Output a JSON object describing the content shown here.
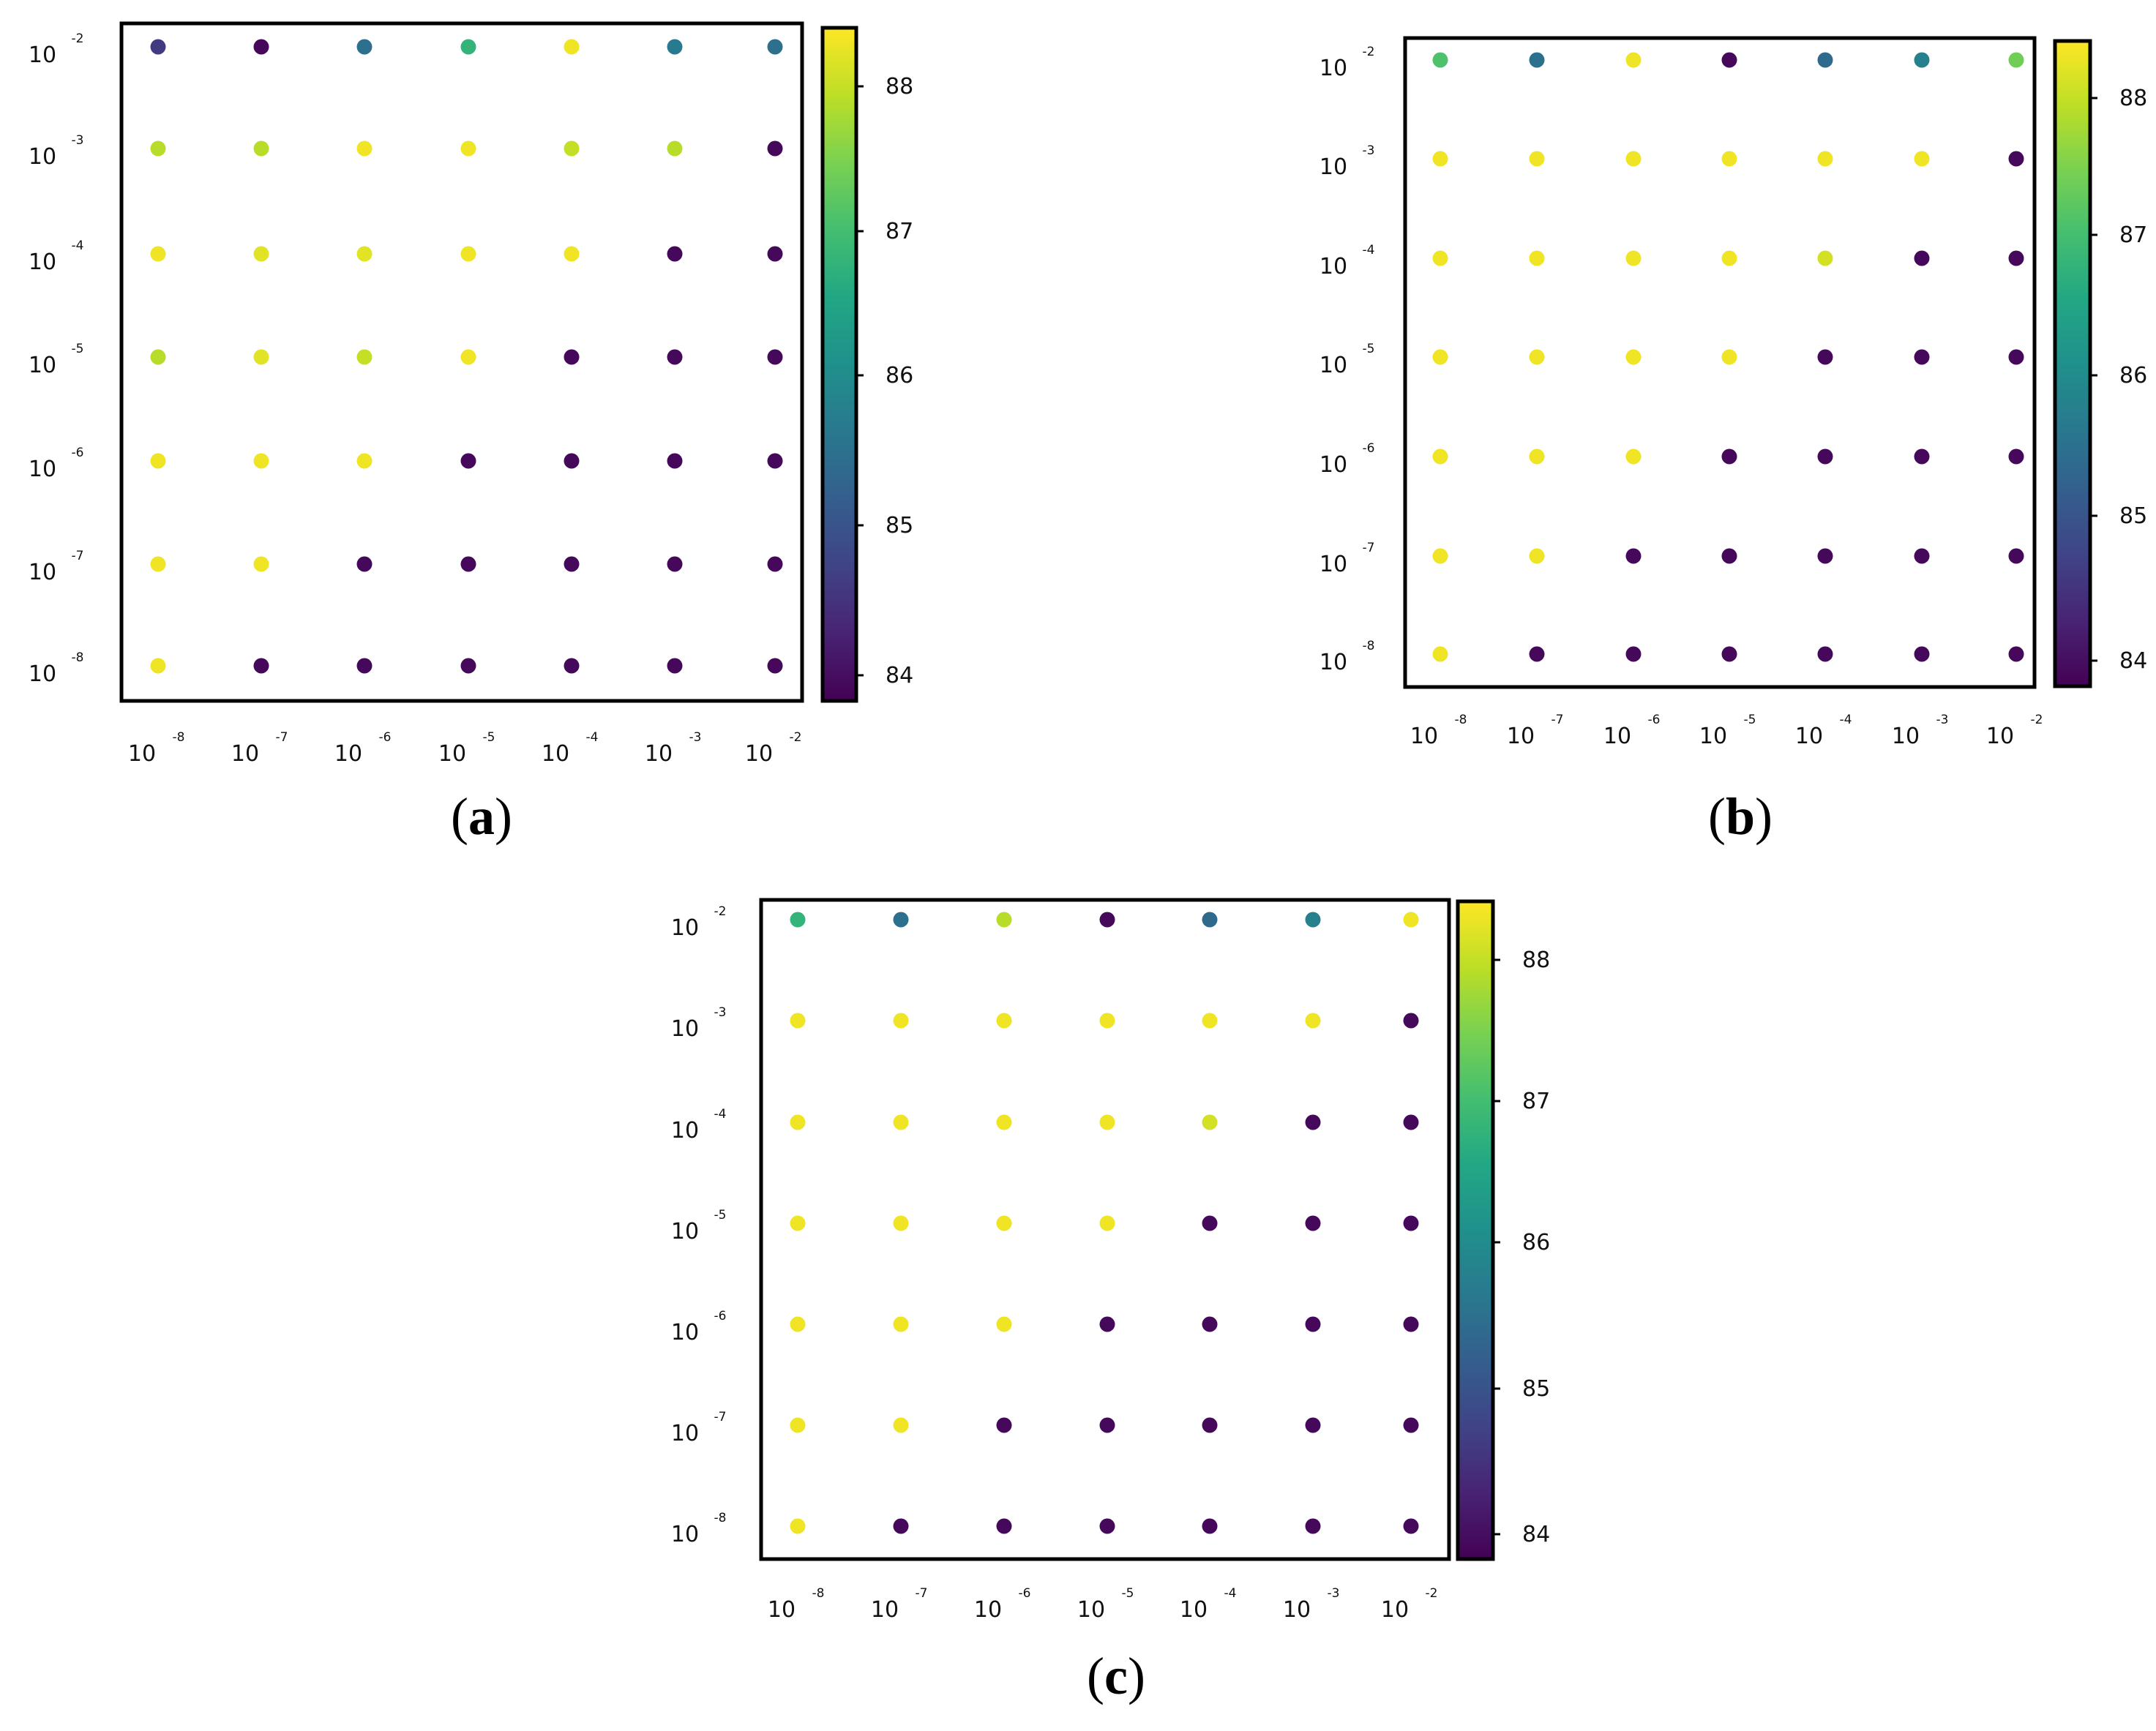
{
  "chart_data": [
    {
      "type": "scatter",
      "panel_label": "(a)",
      "x_ticks": [
        "-8",
        "-7",
        "-6",
        "-5",
        "-4",
        "-3",
        "-2"
      ],
      "y_ticks": [
        "-2",
        "-3",
        "-4",
        "-5",
        "-6",
        "-7",
        "-8"
      ],
      "tick_base": "10",
      "x_scale": "log",
      "y_scale": "log",
      "colorbar": {
        "colormap": "viridis",
        "range": [
          83.8,
          88.4
        ],
        "ticks": [
          84,
          85,
          86,
          87,
          88
        ]
      },
      "rows": [
        {
          "y": 0.01,
          "values": [
            84.6,
            83.9,
            85.5,
            86.8,
            88.3,
            85.7,
            85.5
          ]
        },
        {
          "y": 0.001,
          "values": [
            87.9,
            87.9,
            88.3,
            88.3,
            88.0,
            87.9,
            83.9
          ]
        },
        {
          "y": 0.0001,
          "values": [
            88.3,
            88.2,
            88.2,
            88.3,
            88.3,
            83.9,
            83.9
          ]
        },
        {
          "y": 1e-05,
          "values": [
            87.9,
            88.2,
            88.0,
            88.3,
            83.9,
            83.9,
            83.9
          ]
        },
        {
          "y": 1e-06,
          "values": [
            88.3,
            88.3,
            88.3,
            83.9,
            83.9,
            83.9,
            83.9
          ]
        },
        {
          "y": 1e-07,
          "values": [
            88.3,
            88.3,
            83.9,
            83.9,
            83.9,
            83.9,
            83.9
          ]
        },
        {
          "y": 1e-08,
          "values": [
            88.3,
            83.9,
            83.9,
            83.9,
            83.9,
            83.9,
            83.9
          ]
        }
      ],
      "x": [
        1e-08,
        1e-07,
        1e-06,
        1e-05,
        0.0001,
        0.001,
        0.01
      ]
    },
    {
      "type": "scatter",
      "panel_label": "(b)",
      "x_ticks": [
        "-8",
        "-7",
        "-6",
        "-5",
        "-4",
        "-3",
        "-2"
      ],
      "y_ticks": [
        "-2",
        "-3",
        "-4",
        "-5",
        "-6",
        "-7",
        "-8"
      ],
      "tick_base": "10",
      "x_scale": "log",
      "y_scale": "log",
      "colorbar": {
        "colormap": "viridis",
        "range": [
          83.8,
          88.4
        ],
        "ticks": [
          84,
          85,
          86,
          87,
          88
        ]
      },
      "rows": [
        {
          "y": 0.01,
          "values": [
            87.1,
            85.5,
            88.3,
            83.9,
            85.4,
            85.8,
            87.4
          ]
        },
        {
          "y": 0.001,
          "values": [
            88.3,
            88.3,
            88.3,
            88.3,
            88.3,
            88.3,
            83.9
          ]
        },
        {
          "y": 0.0001,
          "values": [
            88.3,
            88.3,
            88.3,
            88.3,
            88.1,
            83.9,
            83.9
          ]
        },
        {
          "y": 1e-05,
          "values": [
            88.3,
            88.3,
            88.3,
            88.3,
            83.9,
            83.9,
            83.9
          ]
        },
        {
          "y": 1e-06,
          "values": [
            88.3,
            88.3,
            88.3,
            83.9,
            83.9,
            83.9,
            83.9
          ]
        },
        {
          "y": 1e-07,
          "values": [
            88.3,
            88.3,
            83.9,
            83.9,
            83.9,
            83.9,
            83.9
          ]
        },
        {
          "y": 1e-08,
          "values": [
            88.3,
            83.9,
            83.9,
            83.9,
            83.9,
            83.9,
            83.9
          ]
        }
      ],
      "x": [
        1e-08,
        1e-07,
        1e-06,
        1e-05,
        0.0001,
        0.001,
        0.01
      ]
    },
    {
      "type": "scatter",
      "panel_label": "(c)",
      "x_ticks": [
        "-8",
        "-7",
        "-6",
        "-5",
        "-4",
        "-3",
        "-2"
      ],
      "y_ticks": [
        "-2",
        "-3",
        "-4",
        "-5",
        "-6",
        "-7",
        "-8"
      ],
      "tick_base": "10",
      "x_scale": "log",
      "y_scale": "log",
      "colorbar": {
        "colormap": "viridis",
        "range": [
          83.8,
          88.4
        ],
        "ticks": [
          84,
          85,
          86,
          87,
          88
        ]
      },
      "rows": [
        {
          "y": 0.01,
          "values": [
            86.8,
            85.5,
            87.9,
            83.9,
            85.4,
            85.8,
            88.3
          ]
        },
        {
          "y": 0.001,
          "values": [
            88.3,
            88.3,
            88.3,
            88.3,
            88.3,
            88.3,
            83.9
          ]
        },
        {
          "y": 0.0001,
          "values": [
            88.3,
            88.3,
            88.3,
            88.3,
            88.1,
            83.9,
            83.9
          ]
        },
        {
          "y": 1e-05,
          "values": [
            88.3,
            88.3,
            88.3,
            88.3,
            83.9,
            83.9,
            83.9
          ]
        },
        {
          "y": 1e-06,
          "values": [
            88.3,
            88.3,
            88.3,
            83.9,
            83.9,
            83.9,
            83.9
          ]
        },
        {
          "y": 1e-07,
          "values": [
            88.3,
            88.3,
            83.9,
            83.9,
            83.9,
            83.9,
            83.9
          ]
        },
        {
          "y": 1e-08,
          "values": [
            88.3,
            83.9,
            83.9,
            83.9,
            83.9,
            83.9,
            83.9
          ]
        }
      ],
      "x": [
        1e-08,
        1e-07,
        1e-06,
        1e-05,
        0.0001,
        0.001,
        0.01
      ]
    }
  ]
}
